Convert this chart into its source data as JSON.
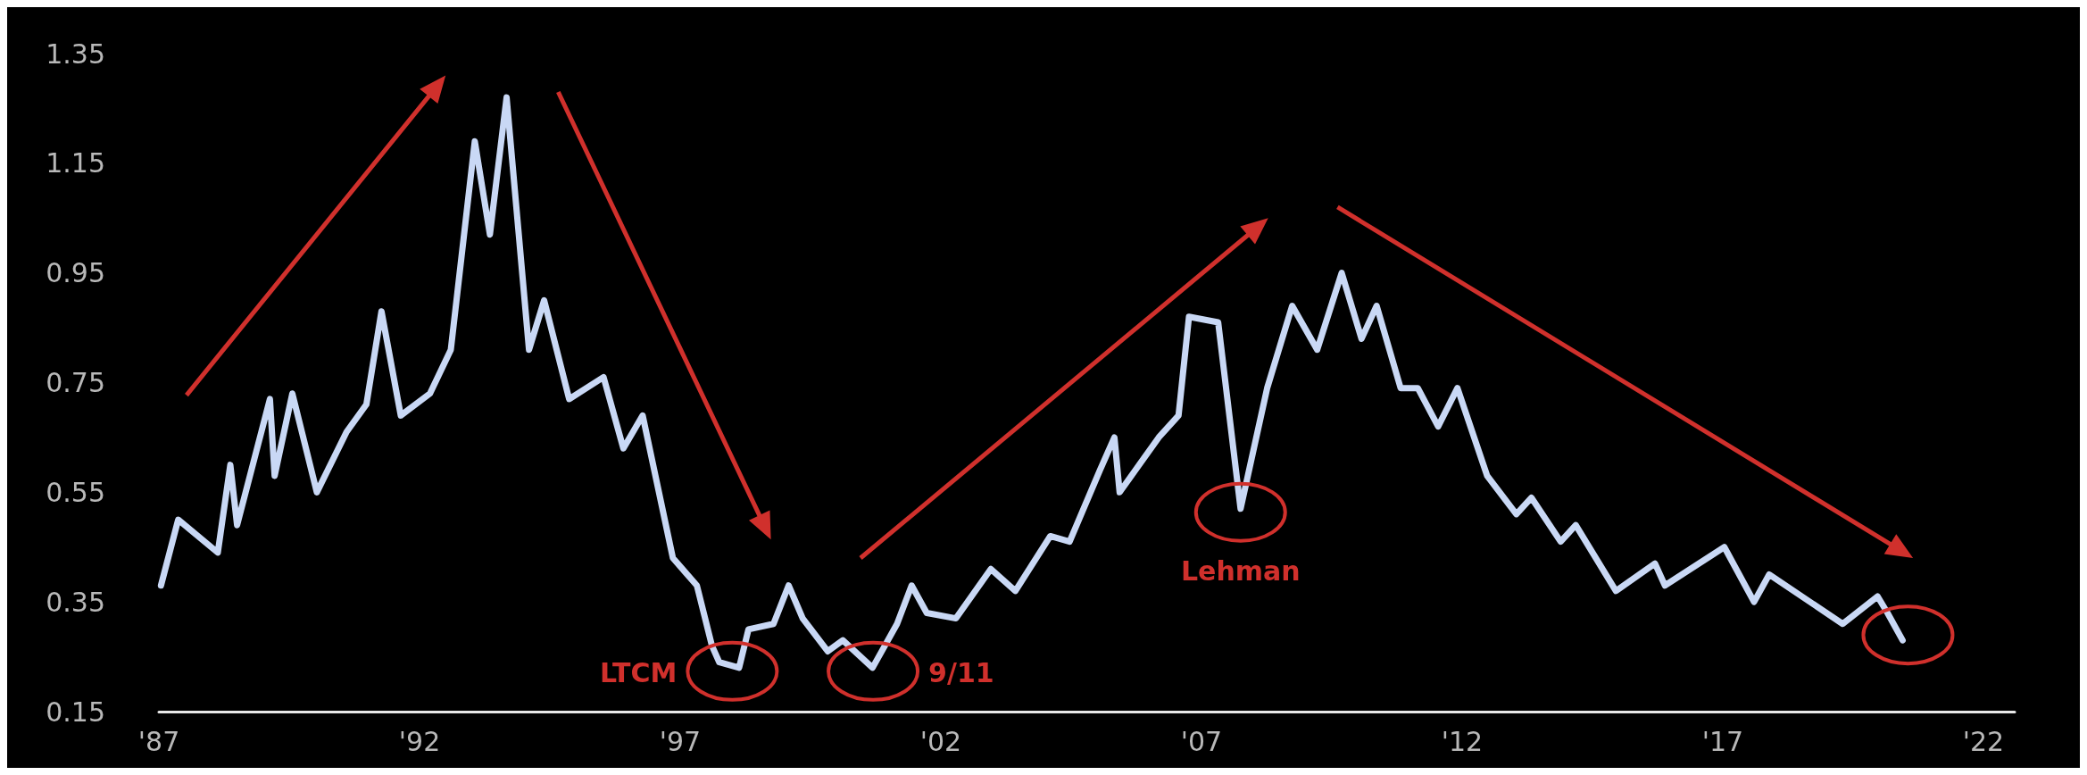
{
  "chart_data": {
    "type": "line",
    "x": [
      1987.04,
      1987.37,
      1988.13,
      1988.37,
      1988.5,
      1989.13,
      1989.22,
      1989.56,
      1990.03,
      1990.6,
      1990.98,
      1991.27,
      1991.64,
      1992.2,
      1992.6,
      1993.06,
      1993.35,
      1993.67,
      1994.1,
      1994.39,
      1994.87,
      1995.53,
      1995.91,
      1996.28,
      1996.86,
      1997.32,
      1997.61,
      1997.75,
      1998.13,
      1998.31,
      1998.79,
      1999.08,
      1999.35,
      1999.83,
      2000.12,
      2000.69,
      2001.16,
      2001.44,
      2001.73,
      2002.29,
      2002.96,
      2003.43,
      2004.1,
      2004.47,
      2005.05,
      2005.33,
      2005.43,
      2006.18,
      2006.56,
      2006.76,
      2007.32,
      2007.75,
      2008.26,
      2008.74,
      2009.22,
      2009.69,
      2010.07,
      2010.36,
      2010.82,
      2011.15,
      2011.54,
      2011.91,
      2012.48,
      2013.04,
      2013.33,
      2013.89,
      2014.18,
      2014.95,
      2015.7,
      2015.89,
      2017.03,
      2017.6,
      2017.89,
      2019.3,
      2019.97,
      2020.16,
      2020.45
    ],
    "series": [
      {
        "color": "#c9d8f5",
        "values": [
          0.38,
          0.5,
          0.44,
          0.6,
          0.49,
          0.72,
          0.58,
          0.73,
          0.55,
          0.66,
          0.71,
          0.88,
          0.69,
          0.73,
          0.81,
          1.19,
          1.02,
          1.27,
          0.81,
          0.9,
          0.72,
          0.76,
          0.63,
          0.69,
          0.43,
          0.38,
          0.27,
          0.24,
          0.23,
          0.3,
          0.31,
          0.38,
          0.32,
          0.26,
          0.28,
          0.23,
          0.31,
          0.38,
          0.33,
          0.32,
          0.41,
          0.37,
          0.47,
          0.46,
          0.59,
          0.65,
          0.55,
          0.65,
          0.69,
          0.87,
          0.86,
          0.52,
          0.74,
          0.89,
          0.81,
          0.95,
          0.83,
          0.89,
          0.74,
          0.74,
          0.67,
          0.74,
          0.58,
          0.51,
          0.54,
          0.46,
          0.49,
          0.37,
          0.42,
          0.38,
          0.45,
          0.35,
          0.4,
          0.31,
          0.36,
          0.33,
          0.28
        ]
      }
    ],
    "xlim": [
      1987,
      2022.6
    ],
    "xticks": [
      {
        "value": 1987,
        "label": "'87"
      },
      {
        "value": 1992,
        "label": "'92"
      },
      {
        "value": 1997,
        "label": "'97"
      },
      {
        "value": 2002,
        "label": "'02"
      },
      {
        "value": 2007,
        "label": "'07"
      },
      {
        "value": 2012,
        "label": "'12"
      },
      {
        "value": 2017,
        "label": "'17"
      },
      {
        "value": 2022,
        "label": "'22"
      }
    ],
    "ylim": [
      0.15,
      1.35
    ],
    "yticks": [
      0.15,
      0.35,
      0.55,
      0.75,
      0.95,
      1.15,
      1.35
    ],
    "grid": false,
    "line_style": "solid",
    "annotations": [
      {
        "text": "LTCM",
        "x": 1998.0,
        "y": 0.23
      },
      {
        "text": "9/11",
        "x": 2000.7,
        "y": 0.23
      },
      {
        "text": "Lehman",
        "x": 2007.75,
        "y": 0.52
      }
    ]
  }
}
